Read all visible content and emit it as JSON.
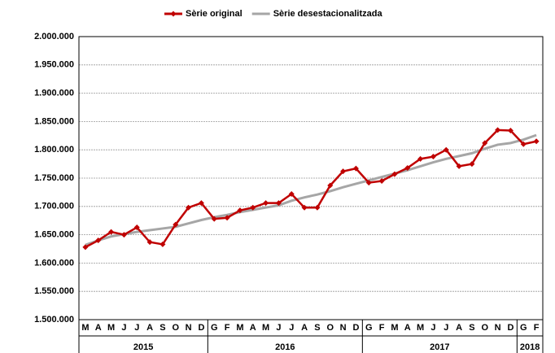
{
  "chart_data": {
    "type": "line",
    "categories": [
      "M",
      "A",
      "M",
      "J",
      "J",
      "A",
      "S",
      "O",
      "N",
      "D",
      "G",
      "F",
      "M",
      "A",
      "M",
      "J",
      "J",
      "A",
      "S",
      "O",
      "N",
      "D",
      "G",
      "F",
      "M",
      "A",
      "M",
      "J",
      "J",
      "A",
      "S",
      "O",
      "N",
      "D",
      "G",
      "F"
    ],
    "years": [
      "2015",
      "2016",
      "2017",
      "2018"
    ],
    "series": [
      {
        "name": "Sèrie original",
        "color": "#c00000",
        "marker": "diamond",
        "values": [
          1628000,
          1640000,
          1655000,
          1650000,
          1663000,
          1637000,
          1633000,
          1668000,
          1698000,
          1706000,
          1678000,
          1680000,
          1693000,
          1698000,
          1706000,
          1706000,
          1722000,
          1698000,
          1698000,
          1737000,
          1762000,
          1767000,
          1742000,
          1745000,
          1757000,
          1768000,
          1784000,
          1788000,
          1800000,
          1771000,
          1775000,
          1812000,
          1835000,
          1834000,
          1810000,
          1815000
        ]
      },
      {
        "name": "Sèrie desestacionalitzada",
        "color": "#a6a6a6",
        "values": [
          1632000,
          1640000,
          1647000,
          1651000,
          1655000,
          1658000,
          1661000,
          1664000,
          1670000,
          1676000,
          1681000,
          1685000,
          1690000,
          1694000,
          1698000,
          1702000,
          1710000,
          1716000,
          1721000,
          1727000,
          1734000,
          1740000,
          1746000,
          1752000,
          1758000,
          1764000,
          1771000,
          1778000,
          1784000,
          1789000,
          1794000,
          1802000,
          1809000,
          1812000,
          1818000,
          1826000
        ]
      }
    ],
    "ylim": [
      1500000,
      2000000
    ],
    "yticks": [
      {
        "value": 1500000,
        "label": "1.500.000"
      },
      {
        "value": 1550000,
        "label": "1.550.000"
      },
      {
        "value": 1600000,
        "label": "1.600.000"
      },
      {
        "value": 1650000,
        "label": "1.650.000"
      },
      {
        "value": 1700000,
        "label": "1.700.000"
      },
      {
        "value": 1750000,
        "label": "1.750.000"
      },
      {
        "value": 1800000,
        "label": "1.800.000"
      },
      {
        "value": 1850000,
        "label": "1.850.000"
      },
      {
        "value": 1900000,
        "label": "1.900.000"
      },
      {
        "value": 1950000,
        "label": "1.950.000"
      },
      {
        "value": 2000000,
        "label": "2.000.000"
      }
    ],
    "grid": true,
    "legend": "top"
  }
}
